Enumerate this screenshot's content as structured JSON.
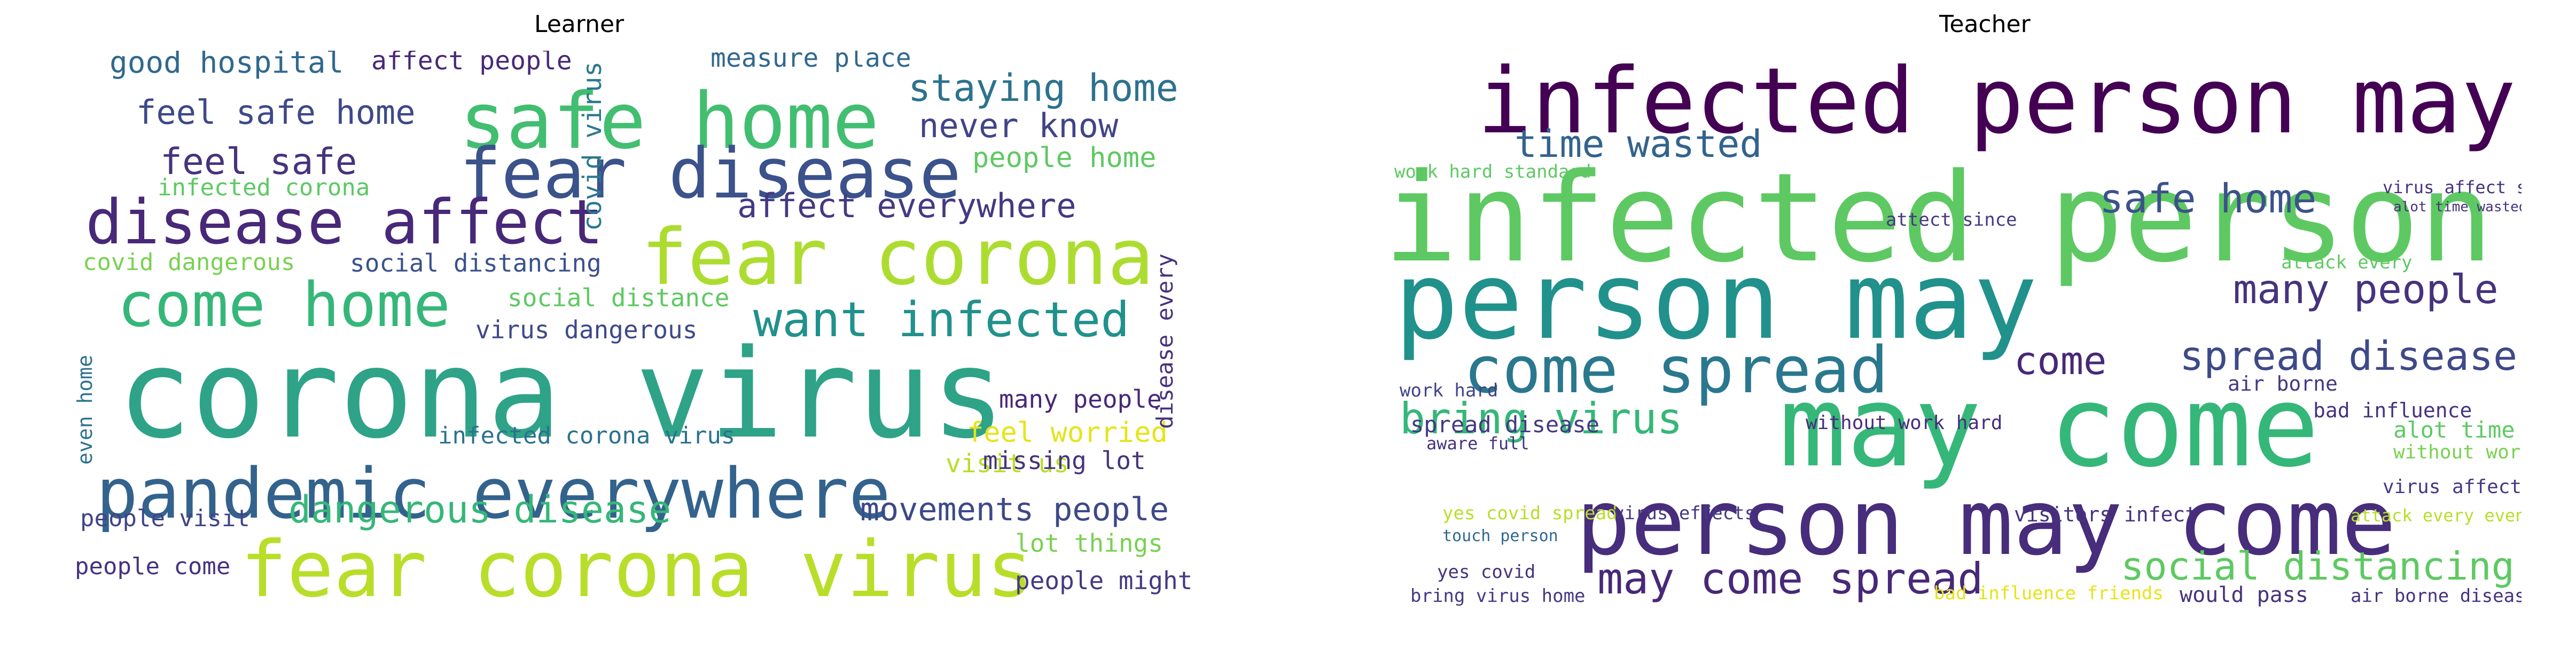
{
  "learner": {
    "title": "Learner",
    "words": [
      "corona virus",
      "pandemic everywhere",
      "fear corona virus",
      "safe home",
      "fear disease",
      "fear corona",
      "disease affect",
      "come home",
      "want infected",
      "staying home",
      "feel safe home",
      "good hospital",
      "affect people",
      "measure place",
      "feel safe",
      "never know",
      "people home",
      "affect everywhere",
      "infected corona",
      "covid virus",
      "covid dangerous",
      "social distancing",
      "social distance",
      "virus dangerous",
      "dangerous disease",
      "movements people",
      "infected corona virus",
      "many people",
      "visit us",
      "feel worried",
      "missing lot",
      "people visit",
      "people come",
      "lot things",
      "people might",
      "disease every",
      "even home"
    ]
  },
  "teacher": {
    "title": "Teacher",
    "words": [
      "infected person may",
      "infected person",
      "person may",
      "may come",
      "person may come",
      "come spread",
      "time wasted",
      "safe home",
      "many people",
      "spread disease",
      "bring virus",
      "may come spread",
      "social distancing",
      "come",
      "work hard standard",
      "attack every",
      "virus affect since",
      "alot time wasted",
      "spread disease",
      "without work hard",
      "work hard",
      "aware full",
      "bad influence",
      "alot time",
      "without work",
      "virus affect",
      "yes covid spread",
      "virus effects",
      "visitors infect",
      "attack every even",
      "touch person",
      "yes covid",
      "bring virus home",
      "would pass",
      "bad influence friends",
      "air borne",
      "air borne disease",
      "attect since"
    ]
  }
}
